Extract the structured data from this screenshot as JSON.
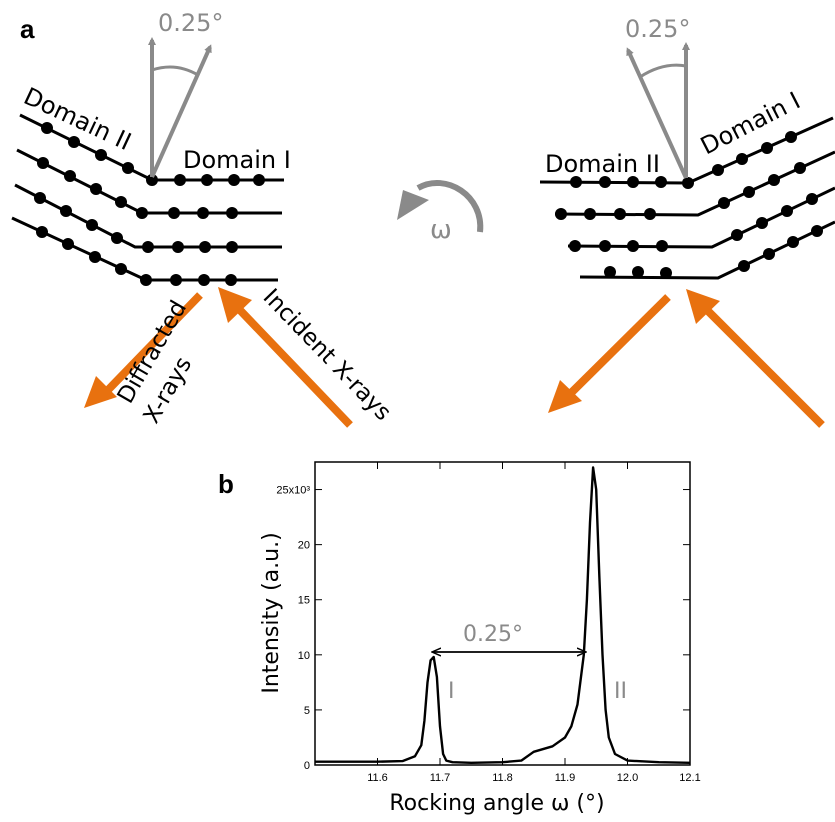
{
  "panel_a": {
    "label": "a",
    "left": {
      "angle_label": "0.25°",
      "domain_left_label": "Domain II",
      "domain_right_label": "Domain I",
      "diffracted_label_1": "Diffracted",
      "diffracted_label_2": "X-rays",
      "incident_label": "Incident X-rays"
    },
    "rotation_label": "ω",
    "right": {
      "angle_label": "0.25°",
      "domain_left_label": "Domain II",
      "domain_right_label": "Domain I"
    },
    "colors": {
      "beam": "#e8710f",
      "arrow": "#8a8a8a",
      "lattice": "#000000"
    }
  },
  "panel_b": {
    "label": "b",
    "peak_I_label": "I",
    "peak_II_label": "II",
    "separation_label": "0.25°"
  },
  "chart_data": {
    "type": "line",
    "title": "",
    "xlabel": "Rocking angle ω (°)",
    "ylabel": "Intensity (a.u.)",
    "xlim": [
      11.5,
      12.1
    ],
    "ylim": [
      0,
      27500
    ],
    "x_ticks": [
      11.6,
      11.7,
      11.8,
      11.9,
      12.0,
      12.1
    ],
    "x_tick_labels": [
      "11.6",
      "11.7",
      "11.8",
      "11.9",
      "12.0",
      "12.1"
    ],
    "y_ticks": [
      0,
      5000,
      10000,
      15000,
      20000,
      25000
    ],
    "y_tick_labels": [
      "0",
      "5",
      "10",
      "15",
      "20",
      "25x10³"
    ],
    "grid": false,
    "series": [
      {
        "x": [
          11.5,
          11.6,
          11.64,
          11.66,
          11.67,
          11.675,
          11.68,
          11.685,
          11.69,
          11.695,
          11.7,
          11.705,
          11.71,
          11.72,
          11.75,
          11.8,
          11.83,
          11.85,
          11.88,
          11.9,
          11.91,
          11.92,
          11.93,
          11.935,
          11.94,
          11.945,
          11.95,
          11.955,
          11.96,
          11.965,
          11.97,
          11.98,
          12.0,
          12.05,
          12.1
        ],
        "values": [
          300,
          300,
          350,
          800,
          1800,
          4000,
          7500,
          9500,
          9800,
          8000,
          3500,
          1000,
          400,
          250,
          200,
          250,
          400,
          1200,
          1700,
          2500,
          3500,
          5500,
          10000,
          15000,
          22000,
          27000,
          25000,
          17000,
          10000,
          5000,
          2500,
          1000,
          400,
          250,
          200
        ]
      }
    ]
  }
}
